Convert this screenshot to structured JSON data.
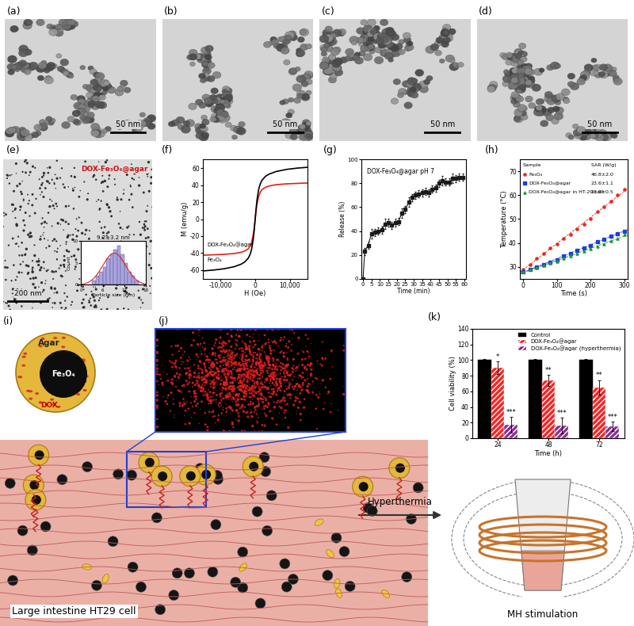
{
  "row1": [
    {
      "panel": "(a)",
      "scale_bar": "50 nm"
    },
    {
      "panel": "(b)",
      "scale_bar": "50 nm"
    },
    {
      "panel": "(c)",
      "scale_bar": "50 nm"
    },
    {
      "panel": "(d)",
      "scale_bar": "50 nm"
    }
  ],
  "panel_e": {
    "panel": "(e)",
    "sample": "DOX-Fe₃O₄@agar",
    "scale_bar": "200 nm",
    "inset": {
      "type": "histogram",
      "title": "9.2±3.2 nm",
      "x_label": "Particle size (nm)",
      "y_label": "Count",
      "bins": [
        3,
        4,
        5,
        6,
        7,
        8,
        9,
        10,
        11,
        12,
        13,
        14,
        15,
        16
      ],
      "counts": [
        1,
        2,
        3,
        4,
        6,
        7,
        8,
        9,
        7,
        5,
        3,
        2,
        1
      ],
      "fit": {
        "mean": 9.2,
        "sd": 3.2
      },
      "color": "#a9a3e6",
      "xlim": [
        0,
        18
      ],
      "xticks": [
        0,
        6,
        12,
        18
      ],
      "ylim": [
        0,
        10
      ],
      "yticks": [
        0,
        5,
        10
      ]
    }
  },
  "chart_data": [
    {
      "panel": "(f)",
      "type": "line",
      "x_label": "H (Oe)",
      "y_label": "M (emu/g)",
      "x": [
        -15000,
        -12000,
        -9000,
        -6000,
        -4000,
        -3000,
        -2000,
        -1500,
        -1000,
        -500,
        -250,
        0,
        250,
        500,
        1000,
        1500,
        2000,
        3000,
        4000,
        6000,
        9000,
        12000,
        15000
      ],
      "series": [
        {
          "name": "DOX-Fe₃O₄@agar",
          "color": "#e0201b",
          "values": [
            -42.5,
            -42,
            -41.5,
            -40.5,
            -39,
            -37.5,
            -35,
            -32,
            -27,
            -17,
            -9,
            0,
            9,
            17,
            27,
            32,
            35,
            37.5,
            39,
            40.5,
            41.5,
            42,
            42.5
          ]
        },
        {
          "name": "Fe₃O₄",
          "color": "#000000",
          "values": [
            -61,
            -60,
            -58.5,
            -56,
            -53,
            -50.5,
            -46,
            -42,
            -35,
            -22,
            -12,
            0,
            12,
            22,
            35,
            42,
            46,
            50.5,
            53,
            56,
            58.5,
            60,
            61
          ]
        }
      ],
      "xlim": [
        -15000,
        15000
      ],
      "xticks": [
        {
          "value": -10000,
          "label": "-10,000"
        },
        0,
        {
          "value": 10000,
          "label": "10,000"
        }
      ],
      "ylim": [
        -70,
        70
      ],
      "yticks": [
        -60,
        -40,
        -20,
        0,
        20,
        40,
        60
      ]
    },
    {
      "panel": "(g)",
      "type": "line",
      "title": "DOX-Fe₃O₄@agar pH 7",
      "x_label": "Time (min)",
      "y_label": "Release (%)",
      "x": [
        0,
        1,
        3,
        5,
        7,
        9,
        11,
        13,
        15,
        17,
        19,
        21,
        23,
        25,
        27,
        29,
        31,
        33,
        35,
        37,
        39,
        41,
        43,
        45,
        47,
        49,
        51,
        53,
        55,
        57,
        59
      ],
      "series": [
        {
          "name": "DOX-Fe₃O₄@agar pH 7",
          "color": "#1a1a1a",
          "marker": "square",
          "values": [
            0,
            23,
            28,
            38,
            39,
            40,
            41,
            46,
            47,
            45,
            47,
            48,
            55,
            58,
            64,
            68,
            70,
            71,
            72,
            73,
            72,
            75,
            76,
            80,
            82,
            81,
            81,
            84,
            84,
            85,
            85
          ],
          "error": [
            0,
            3,
            3,
            4,
            3,
            3,
            3,
            4,
            3,
            3,
            3,
            3,
            4,
            3,
            4,
            3,
            3,
            3,
            3,
            3,
            3,
            3,
            3,
            3,
            4,
            3,
            3,
            4,
            3,
            3,
            3
          ]
        }
      ],
      "xlim": [
        -1,
        61
      ],
      "xticks": [
        0,
        5,
        10,
        15,
        20,
        25,
        30,
        35,
        40,
        45,
        50,
        55,
        60
      ],
      "ylim": [
        0,
        100
      ],
      "yticks": [
        0,
        20,
        40,
        60,
        80,
        100
      ]
    },
    {
      "panel": "(h)",
      "type": "scatter",
      "x_label": "Time (s)",
      "y_label": "Temperature (°C)",
      "table_header": [
        "Sample",
        "SAR (W/g)"
      ],
      "x": [
        0,
        20,
        40,
        60,
        80,
        100,
        120,
        140,
        160,
        180,
        200,
        220,
        240,
        260,
        280,
        300
      ],
      "series": [
        {
          "name": "Fe₃O₄",
          "sar": "46.8±2.0",
          "color": "#e8291c",
          "marker": "circle",
          "line_style": "dashed",
          "values": [
            29,
            31,
            33.5,
            35.5,
            38,
            39.5,
            42,
            43.5,
            46,
            48,
            50,
            53,
            55,
            57.5,
            60,
            62.5
          ]
        },
        {
          "name": "DOX-Fe₃O₄@agar",
          "sar": "23.6±1.1",
          "color": "#1f3fd6",
          "marker": "square",
          "line_style": "dashed",
          "values": [
            28,
            29,
            30,
            31,
            32,
            33,
            34.5,
            35.5,
            37,
            38,
            39,
            40.5,
            41.5,
            43,
            44,
            45
          ]
        },
        {
          "name": "DOX-Fe₃O₄@agar in HT-29 cell",
          "sar": "18.9±0.5",
          "color": "#1f9e3a",
          "marker": "triangle",
          "line_style": "dashed",
          "values": [
            28,
            28.8,
            29.6,
            30.5,
            31.5,
            32.3,
            33.5,
            34.5,
            35.5,
            36.5,
            37.5,
            38.5,
            39.5,
            40.8,
            42,
            43.5
          ]
        }
      ],
      "xlim": [
        -10,
        310
      ],
      "xticks": [
        0,
        100,
        200,
        300
      ],
      "ylim": [
        25,
        75
      ],
      "yticks": [
        30,
        40,
        50,
        60,
        70
      ]
    },
    {
      "panel": "(k)",
      "type": "bar",
      "x_label": "Time (h)",
      "y_label": "Cell viability (%)",
      "categories": [
        "24",
        "48",
        "72"
      ],
      "series": [
        {
          "name": "Control",
          "color": "#000000",
          "values": [
            100,
            100,
            100
          ],
          "error": [
            1.5,
            1,
            1.5
          ],
          "annotations": [
            null,
            null,
            null
          ]
        },
        {
          "name": "DOX-Fe₃O₄@agar",
          "color": "#ff2020",
          "values": [
            90,
            74,
            65
          ],
          "error": [
            8,
            7,
            9
          ],
          "annotations": [
            "*",
            "**",
            "**"
          ]
        },
        {
          "name": "DOX-Fe₃O₄@agar (hyperthermia)",
          "color": "#8b2f8f",
          "values": [
            17,
            16,
            15
          ],
          "error": [
            10,
            10,
            6
          ],
          "annotations": [
            "***",
            "***",
            "***"
          ]
        }
      ],
      "legend": "upper right",
      "ylim": [
        0,
        140
      ],
      "yticks": [
        0,
        20,
        40,
        60,
        80,
        100,
        120,
        140
      ]
    }
  ],
  "diagram": {
    "panel": "(i)",
    "shell": "Agar",
    "core": "Fe₃O₄",
    "drug": "DOX",
    "tissue": "Large intestine HT29 cell",
    "arrow": "Hyperthermia",
    "device": "MH stimulation"
  },
  "panel_j": {
    "panel": "(j)"
  }
}
